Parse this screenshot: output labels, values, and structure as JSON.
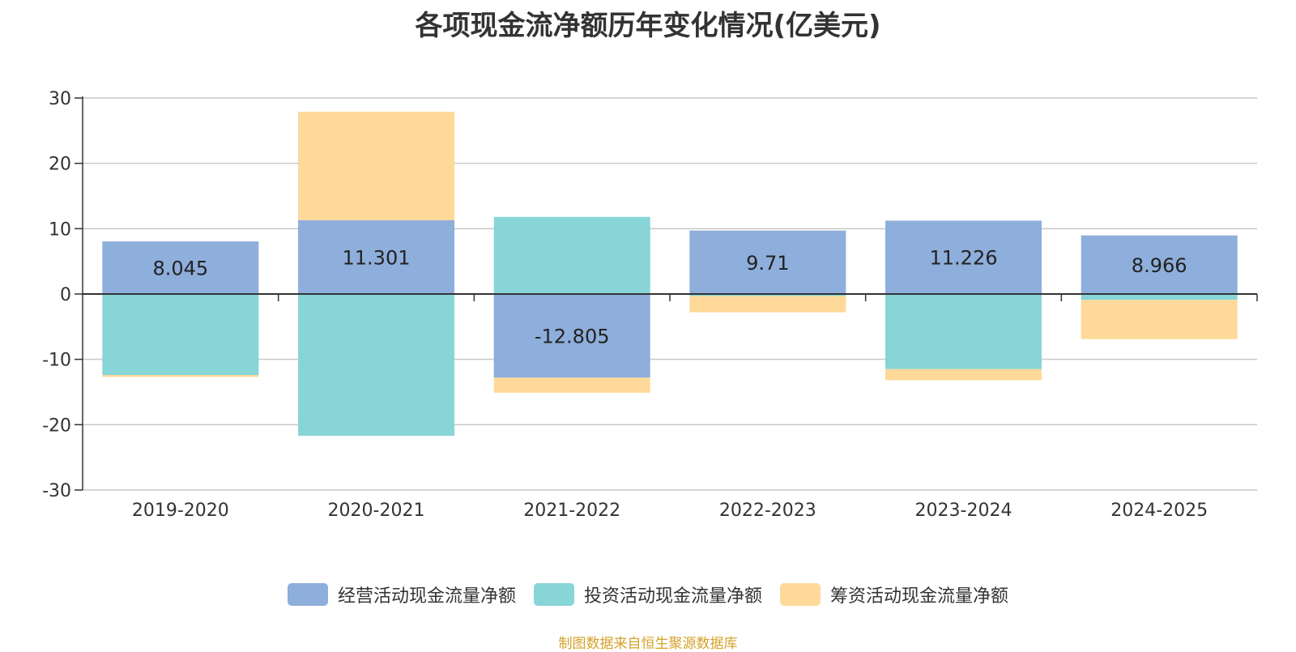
{
  "chart_data": {
    "type": "bar",
    "stacked": true,
    "title": "各项现金流净额历年变化情况(亿美元)",
    "categories": [
      "2019-2020",
      "2020-2021",
      "2021-2022",
      "2022-2023",
      "2023-2024",
      "2024-2025"
    ],
    "ylim": [
      -30,
      30
    ],
    "yticks": [
      30,
      20,
      10,
      0,
      -10,
      -20,
      -30
    ],
    "grid": true,
    "legend_position": "bottom",
    "series": [
      {
        "name": "经营活动现金流量净额",
        "color": "#8eaedb",
        "values": [
          8.045,
          11.301,
          -12.805,
          9.71,
          11.226,
          8.966
        ],
        "labels": [
          "8.045",
          "11.301",
          "-12.805",
          "9.71",
          "11.226",
          "8.966"
        ]
      },
      {
        "name": "投资活动现金流量净额",
        "color": "#88d5d8",
        "values": [
          -12.4,
          -21.7,
          11.8,
          -0.3,
          -11.5,
          -0.9
        ]
      },
      {
        "name": "筹资活动现金流量净额",
        "color": "#fed999",
        "values": [
          -0.3,
          16.6,
          -2.3,
          -2.5,
          -1.7,
          -6.0
        ]
      }
    ]
  },
  "footer": {
    "source": "制图数据来自恒生聚源数据库"
  }
}
